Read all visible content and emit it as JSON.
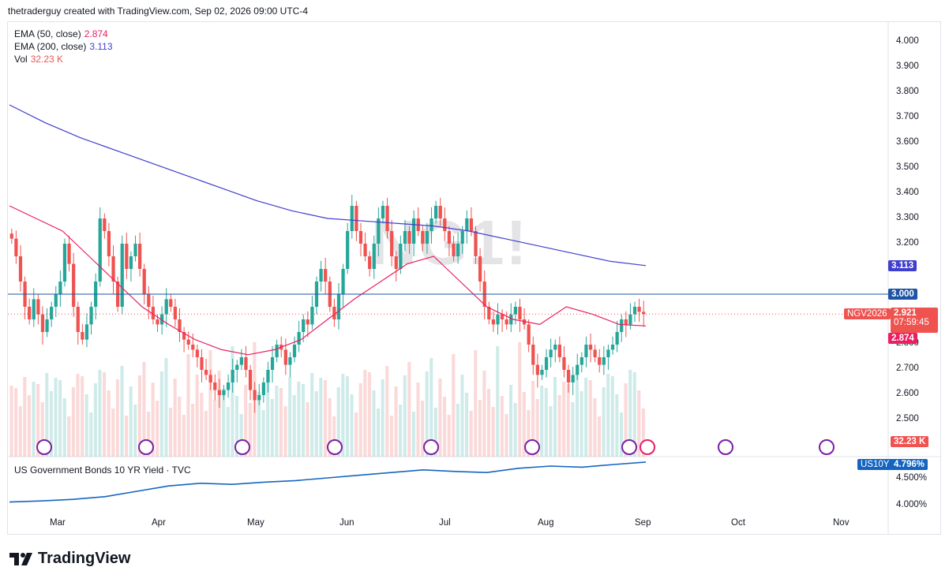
{
  "header": {
    "text": "thetraderguy created with TradingView.com, Sep 02, 2026 09:00 UTC-4"
  },
  "legend": {
    "ema50_label": "EMA (50, close)",
    "ema50_value": "2.874",
    "ema200_label": "EMA (200, close)",
    "ema200_value": "3.113",
    "vol_label": "Vol",
    "vol_value": "32.23 K"
  },
  "watermark": "NG1!",
  "price_axis": [
    "4.000",
    "3.900",
    "3.800",
    "3.700",
    "3.600",
    "3.500",
    "3.400",
    "3.300",
    "3.200",
    "3.000",
    "2.800",
    "2.700",
    "2.600",
    "2.500"
  ],
  "tags": {
    "ema200": "3.113",
    "hline": "3.000",
    "symbol": "NGV2026",
    "last_price": "2.921",
    "countdown": "07:59:45",
    "ema50": "2.874",
    "volume": "32.23 K",
    "us10y_symbol": "US10Y",
    "us10y_value": "4.796%"
  },
  "lower_pane": {
    "title": "US Government Bonds 10 YR Yield · TVC",
    "axis": [
      "4.500%",
      "4.000%"
    ]
  },
  "time_axis": [
    "Mar",
    "Apr",
    "May",
    "Jun",
    "Jul",
    "Aug",
    "Sep",
    "Oct",
    "Nov"
  ],
  "brand": "TradingView",
  "colors": {
    "up": "#26a69a",
    "down": "#ef5350",
    "ema50": "#e91e63",
    "ema200": "#3f3fcf",
    "yield": "#1565c0",
    "event": "#7b1fa2"
  },
  "chart_data": [
    {
      "type": "candlestick",
      "symbol": "NGV2026",
      "interval": "1D",
      "ylim": [
        2.45,
        4.05
      ],
      "x_labels": [
        "Mar",
        "Apr",
        "May",
        "Jun",
        "Jul",
        "Aug",
        "Sep",
        "Oct",
        "Nov"
      ],
      "closes": [
        3.22,
        3.15,
        3.05,
        2.95,
        2.9,
        2.98,
        2.92,
        2.85,
        2.9,
        2.95,
        3.0,
        3.05,
        3.2,
        3.12,
        2.95,
        2.85,
        2.82,
        2.88,
        2.95,
        3.05,
        3.3,
        3.25,
        3.15,
        3.05,
        2.95,
        3.2,
        3.1,
        3.15,
        3.2,
        3.1,
        3.0,
        2.95,
        2.9,
        2.88,
        2.92,
        2.98,
        2.95,
        2.9,
        2.85,
        2.82,
        2.8,
        2.78,
        2.75,
        2.7,
        2.68,
        2.65,
        2.62,
        2.6,
        2.62,
        2.65,
        2.7,
        2.72,
        2.75,
        2.7,
        2.62,
        2.58,
        2.6,
        2.65,
        2.7,
        2.75,
        2.8,
        2.78,
        2.72,
        2.75,
        2.8,
        2.85,
        2.9,
        2.88,
        2.95,
        3.05,
        3.1,
        3.05,
        2.95,
        2.9,
        3.0,
        3.1,
        3.25,
        3.35,
        3.25,
        3.2,
        3.15,
        3.1,
        3.2,
        3.3,
        3.35,
        3.25,
        3.15,
        3.1,
        3.2,
        3.25,
        3.2,
        3.3,
        3.25,
        3.2,
        3.25,
        3.3,
        3.35,
        3.3,
        3.25,
        3.2,
        3.15,
        3.2,
        3.25,
        3.3,
        3.25,
        3.15,
        3.05,
        2.95,
        2.9,
        2.88,
        2.92,
        2.9,
        2.88,
        2.92,
        2.95,
        2.9,
        2.88,
        2.8,
        2.72,
        2.68,
        2.7,
        2.75,
        2.78,
        2.8,
        2.75,
        2.7,
        2.65,
        2.68,
        2.72,
        2.75,
        2.8,
        2.78,
        2.75,
        2.72,
        2.75,
        2.78,
        2.8,
        2.85,
        2.9,
        2.88,
        2.92,
        2.95,
        2.93,
        2.921
      ],
      "ema_50": [
        3.35,
        3.3,
        3.25,
        3.15,
        3.05,
        2.95,
        2.88,
        2.82,
        2.78,
        2.76,
        2.78,
        2.82,
        2.9,
        2.98,
        3.05,
        3.12,
        3.15,
        3.05,
        2.95,
        2.9,
        2.88,
        2.95,
        2.92,
        2.88,
        2.874
      ],
      "ema_200": [
        3.75,
        3.68,
        3.62,
        3.57,
        3.52,
        3.47,
        3.42,
        3.37,
        3.33,
        3.3,
        3.29,
        3.28,
        3.27,
        3.25,
        3.22,
        3.19,
        3.16,
        3.13,
        3.113
      ],
      "hline": 3.0,
      "last_price": 2.921
    },
    {
      "type": "line",
      "title": "US Government Bonds 10 YR Yield · TVC",
      "ylim": [
        3.95,
        4.85
      ],
      "y": [
        4.05,
        4.07,
        4.1,
        4.15,
        4.25,
        4.35,
        4.4,
        4.38,
        4.42,
        4.45,
        4.5,
        4.55,
        4.6,
        4.65,
        4.62,
        4.6,
        4.68,
        4.72,
        4.7,
        4.75,
        4.796
      ]
    }
  ]
}
